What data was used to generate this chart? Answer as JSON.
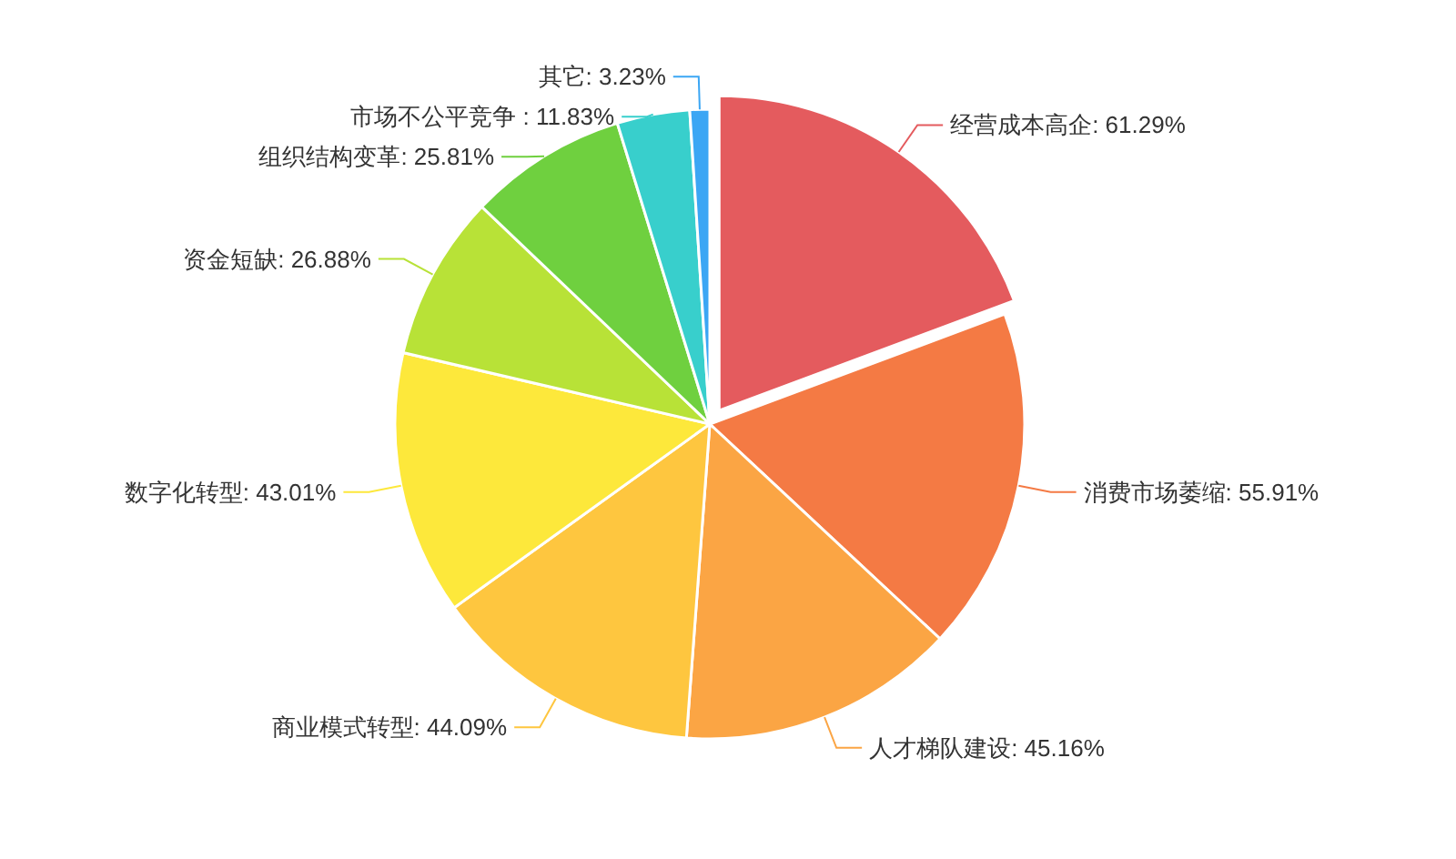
{
  "chart_data": {
    "type": "pie",
    "categories": [
      "经营成本高企: 61.29%",
      "消费市场萎缩: 55.91%",
      "人才梯队建设: 45.16%",
      "商业模式转型: 44.09%",
      "数字化转型: 43.01%",
      "资金短缺: 26.88%",
      "组织结构变革: 25.81%",
      "市场不公平竞争 : 11.83%",
      "其它: 3.23%"
    ],
    "values": [
      61.29,
      55.91,
      45.16,
      44.09,
      43.01,
      26.88,
      25.81,
      11.83,
      3.23
    ],
    "colors": [
      "#e45b5e",
      "#f47a44",
      "#fba544",
      "#fec63f",
      "#fde83b",
      "#b8e237",
      "#6fd03f",
      "#38cfcc",
      "#3ba6f4"
    ]
  }
}
